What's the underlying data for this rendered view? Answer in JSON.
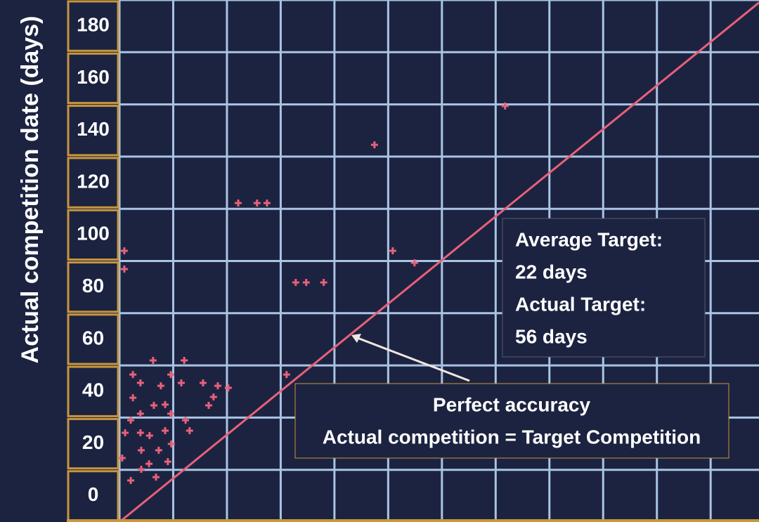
{
  "chart_data": {
    "type": "scatter",
    "ylabel": "Actual competition date (days)",
    "ylim": [
      -10,
      190
    ],
    "yticks": [
      0,
      20,
      40,
      60,
      80,
      100,
      120,
      140,
      160,
      180
    ],
    "ygrid": [
      -10,
      10,
      30,
      50,
      70,
      90,
      110,
      130,
      150,
      170,
      190
    ],
    "xlim": [
      0,
      238
    ],
    "xgrid": [
      0,
      20,
      40,
      60,
      80,
      100,
      120,
      140,
      160,
      180,
      200,
      220
    ],
    "color": "#e8607a",
    "x": [
      1.8,
      1.8,
      44.2,
      51.2,
      54.9,
      94.9,
      143.5,
      101.7,
      109.8,
      65.6,
      69.5,
      76.0,
      62.2,
      12.5,
      24.1,
      5.0,
      19.1,
      7.8,
      15.4,
      23.0,
      31.1,
      36.6,
      40.5,
      35.0,
      5.0,
      12.8,
      17.0,
      33.2,
      7.8,
      19.1,
      4.2,
      24.6,
      2.1,
      7.8,
      11.2,
      17.0,
      26.1,
      8.1,
      14.6,
      19.3,
      1.0,
      11.0,
      18.0,
      8.1,
      4.2,
      13.6
    ],
    "values": [
      93.9,
      86.9,
      112.2,
      112.2,
      112.2,
      134.5,
      149.4,
      93.9,
      89.3,
      81.8,
      81.8,
      81.8,
      46.5,
      51.9,
      51.9,
      46.5,
      46.5,
      43.3,
      42.2,
      43.3,
      43.3,
      42.2,
      41.4,
      37.9,
      37.6,
      34.7,
      35.0,
      34.7,
      31.5,
      31.5,
      29.0,
      29.0,
      24.2,
      24.2,
      23.1,
      25.0,
      25.0,
      17.5,
      17.5,
      19.9,
      14.5,
      12.3,
      13.1,
      10.2,
      5.9,
      7.2
    ],
    "reference_line": {
      "x": [
        0,
        238
      ],
      "y": [
        -10,
        189
      ],
      "color": "#e8607a"
    },
    "info_box": [
      "Average Target:",
      "22 days",
      "Actual Target:",
      "56 days"
    ],
    "annotation": [
      "Perfect accuracy",
      "Actual competition = Target Competition"
    ]
  }
}
